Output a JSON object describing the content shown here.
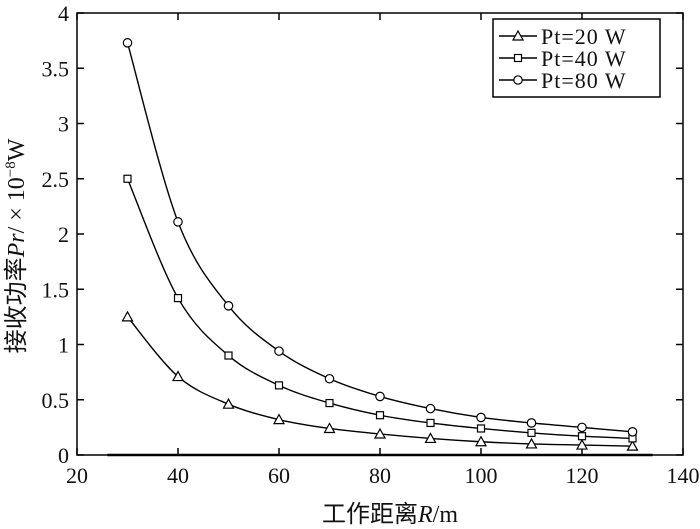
{
  "chart_data": {
    "type": "line",
    "x": [
      30,
      40,
      50,
      60,
      70,
      80,
      90,
      100,
      110,
      120,
      130
    ],
    "xlim": [
      20,
      140
    ],
    "ylim": [
      0,
      4
    ],
    "xticks": [
      20,
      40,
      60,
      80,
      100,
      120,
      140
    ],
    "xtick_labels": [
      "20",
      "40",
      "60",
      "80",
      "100",
      "120",
      "140"
    ],
    "yticks": [
      0,
      0.5,
      1,
      1.5,
      2,
      2.5,
      3,
      3.5,
      4
    ],
    "ytick_labels": [
      "0",
      "0.5",
      "1",
      "1.5",
      "2",
      "2.5",
      "3",
      "3.5",
      "4"
    ],
    "xlabel": {
      "main": "工作距离",
      "var": "R",
      "unit": "/m"
    },
    "ylabel": {
      "main": "接收功率",
      "var": "Pr",
      "unit": "/ × 10",
      "exp": "−8",
      "unit_end": "W"
    },
    "grid": false,
    "legend_position": "top-right",
    "series": [
      {
        "name": "Pt=20 W",
        "marker": "triangle",
        "values": [
          1.25,
          0.71,
          0.46,
          0.32,
          0.24,
          0.19,
          0.15,
          0.12,
          0.1,
          0.09,
          0.08
        ]
      },
      {
        "name": "Pt=40 W",
        "marker": "square",
        "values": [
          2.5,
          1.42,
          0.9,
          0.63,
          0.47,
          0.36,
          0.29,
          0.24,
          0.2,
          0.17,
          0.15
        ]
      },
      {
        "name": "Pt=80 W",
        "marker": "circle",
        "values": [
          3.73,
          2.11,
          1.35,
          0.94,
          0.69,
          0.53,
          0.42,
          0.34,
          0.29,
          0.25,
          0.21
        ]
      }
    ]
  }
}
